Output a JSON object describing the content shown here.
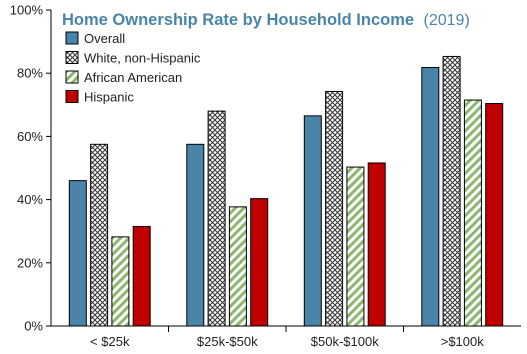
{
  "chart_data": {
    "type": "bar",
    "title": "Home Ownership Rate by Household Income",
    "subtitle": "(2019)",
    "categories": [
      "< $25k",
      "$25k-$50k",
      "$50k-$100k",
      ">$100k"
    ],
    "series": [
      {
        "name": "Overall",
        "values": [
          46,
          57.5,
          66.5,
          81.8
        ],
        "color": "#4a85a9",
        "fill": "solid"
      },
      {
        "name": "White, non-Hispanic",
        "values": [
          57.5,
          68,
          74.2,
          85.3
        ],
        "color": "#222222",
        "fill": "crosshatch"
      },
      {
        "name": "African American",
        "values": [
          28.2,
          37.7,
          50.3,
          71.5
        ],
        "color": "#8ab86d",
        "fill": "diagonal"
      },
      {
        "name": "Hispanic",
        "values": [
          31.5,
          40.3,
          51.6,
          70.4
        ],
        "color": "#c00000",
        "fill": "solid"
      }
    ],
    "y_ticks": [
      "0%",
      "20%",
      "40%",
      "60%",
      "80%",
      "100%"
    ],
    "ylim": [
      0,
      100
    ],
    "grid": false,
    "legend_position": "top-left",
    "colors": {
      "title": "#4a85a9",
      "axis": "#000000"
    }
  }
}
